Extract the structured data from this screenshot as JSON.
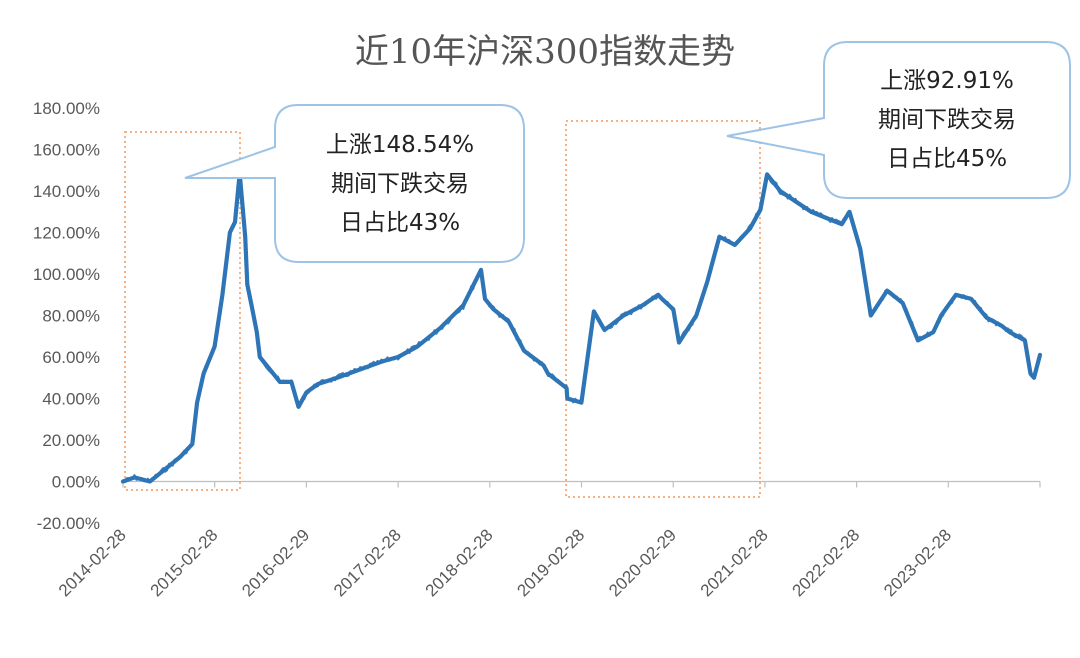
{
  "chart_data": {
    "type": "line",
    "title": "近10年沪深300指数走势",
    "xlabel": "",
    "ylabel": "",
    "ylim": [
      -20,
      180
    ],
    "y_tick_labels": [
      "-20.00%",
      "0.00%",
      "20.00%",
      "40.00%",
      "60.00%",
      "80.00%",
      "100.00%",
      "120.00%",
      "140.00%",
      "160.00%",
      "180.00%"
    ],
    "x_tick_labels": [
      "2014-02-28",
      "2015-02-28",
      "2016-02-29",
      "2017-02-28",
      "2018-02-28",
      "2019-02-28",
      "2020-02-29",
      "2021-02-28",
      "2022-02-28",
      "2023-02-28"
    ],
    "grid": false,
    "legend": "none",
    "colors": {
      "line": "#2e75b6",
      "highlight_box": "#f4b183",
      "callout_border": "#9dc3e6"
    },
    "series": [
      {
        "x": [
          "2014-02-28",
          "2014-04-15",
          "2014-06-15",
          "2014-08-15",
          "2014-10-15",
          "2014-12-01",
          "2014-12-20",
          "2015-01-15",
          "2015-02-28",
          "2015-03-31",
          "2015-04-30",
          "2015-05-20",
          "2015-06-08",
          "2015-06-30",
          "2015-07-08",
          "2015-07-25",
          "2015-08-15",
          "2015-08-27",
          "2015-09-30",
          "2015-11-15",
          "2015-12-31",
          "2016-01-28",
          "2016-02-29",
          "2016-04-15",
          "2016-06-30",
          "2016-09-30",
          "2016-12-31",
          "2017-02-28",
          "2017-05-15",
          "2017-08-15",
          "2017-11-15",
          "2018-01-24",
          "2018-02-09",
          "2018-03-15",
          "2018-05-15",
          "2018-07-15",
          "2018-09-30",
          "2018-10-18",
          "2018-12-31",
          "2019-01-03",
          "2019-02-28",
          "2019-04-19",
          "2019-05-31",
          "2019-08-15",
          "2019-10-31",
          "2019-12-31",
          "2020-01-15",
          "2020-02-29",
          "2020-03-23",
          "2020-05-31",
          "2020-07-13",
          "2020-08-31",
          "2020-10-31",
          "2020-12-31",
          "2021-02-10",
          "2021-03-09",
          "2021-04-30",
          "2021-06-30",
          "2021-08-31",
          "2021-10-31",
          "2021-12-31",
          "2022-01-31",
          "2022-03-15",
          "2022-04-26",
          "2022-06-30",
          "2022-08-31",
          "2022-10-31",
          "2022-12-31",
          "2023-01-31",
          "2023-03-31",
          "2023-05-31",
          "2023-07-31",
          "2023-09-30",
          "2023-10-31",
          "2023-12-31",
          "2024-01-22",
          "2024-02-05",
          "2024-02-29"
        ],
        "values": [
          0,
          2,
          0,
          6,
          12,
          18,
          38,
          52,
          65,
          90,
          120,
          125,
          148.54,
          118,
          95,
          85,
          72,
          60,
          55,
          48,
          48,
          36,
          43,
          47,
          50,
          54,
          58,
          60,
          65,
          74,
          85,
          102,
          88,
          83,
          77,
          63,
          56,
          52,
          45,
          40,
          38,
          82,
          73,
          80,
          85,
          90,
          88,
          83,
          67,
          80,
          96,
          118,
          114,
          122,
          131,
          148,
          140,
          135,
          130,
          127,
          124,
          130,
          112,
          80,
          92,
          86,
          68,
          72,
          80,
          90,
          88,
          79,
          75,
          72,
          68,
          52,
          50,
          61
        ]
      }
    ],
    "annotations": [
      {
        "lines": [
          "上涨148.54%",
          "期间下跌交易",
          "日占比43%"
        ]
      },
      {
        "lines": [
          "上涨92.91%",
          "期间下跌交易",
          "日占比45%"
        ]
      }
    ]
  }
}
